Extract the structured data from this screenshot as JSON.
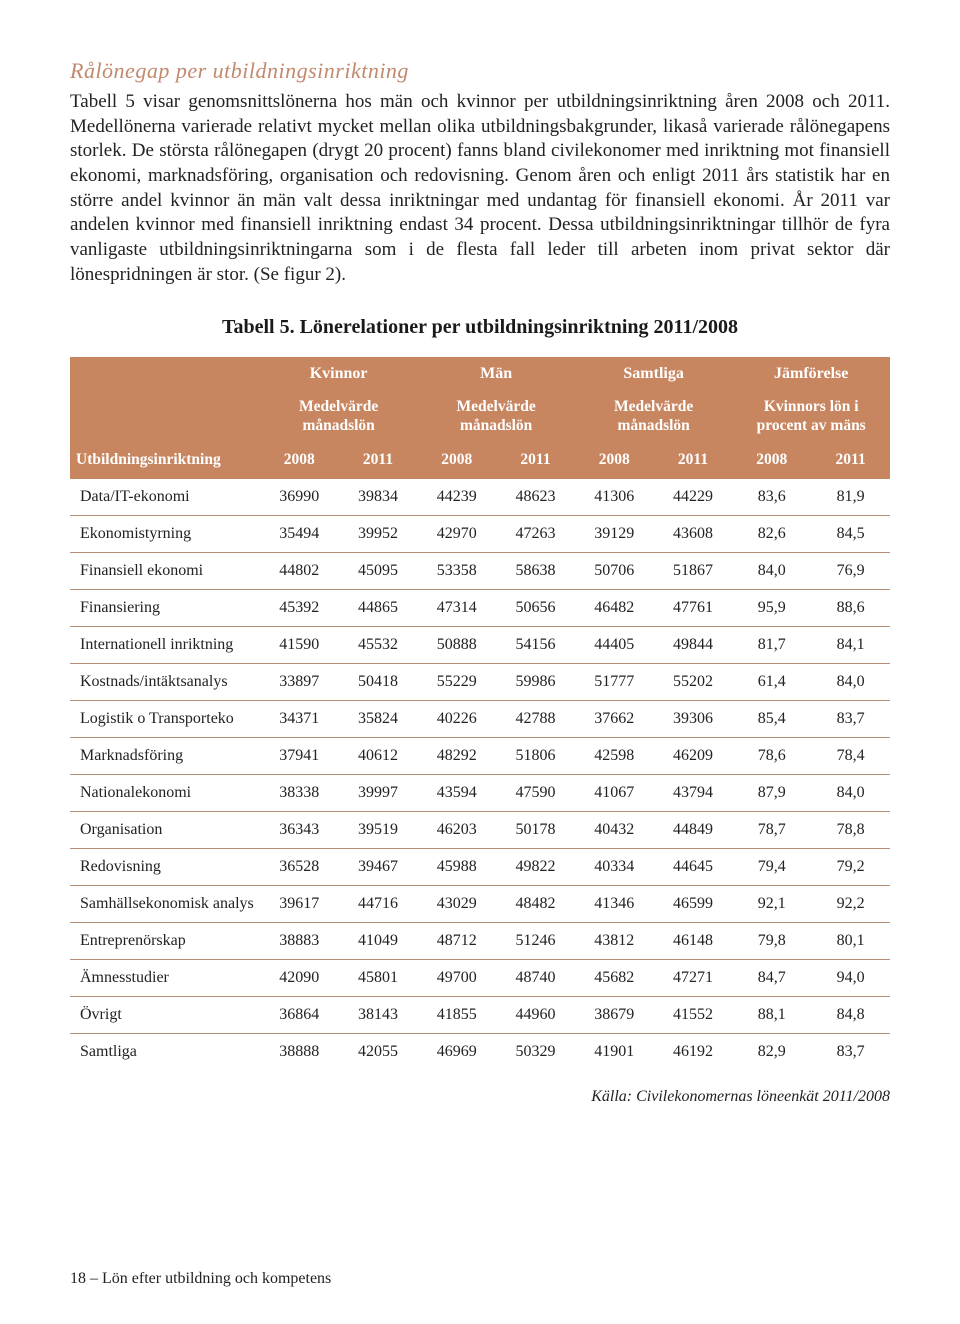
{
  "section_heading": "Rålönegap per utbildningsinriktning",
  "body_text": "Tabell 5 visar genomsnittslönerna hos män och kvinnor per utbildningsinriktning åren 2008 och 2011. Medellönerna varierade relativt mycket mellan olika utbildningsbakgrunder, likaså varierade rålönegapens storlek. De största rålönegapen (drygt 20 procent) fanns bland civilekonomer med inriktning mot finansiell ekonomi, marknadsföring, organisation och redovisning. Genom åren och enligt 2011 års statistik har en större andel kvinnor än män valt dessa inriktningar med undantag för finansiell ekonomi. År 2011 var andelen kvinnor med finansiell inriktning endast 34 procent. Dessa utbildningsinriktningar tillhör de fyra vanligaste utbildningsinriktningarna som i de flesta fall leder till arbeten inom privat sektor där lönespridningen är stor. (Se figur 2).",
  "table_title": "Tabell 5. Lönerelationer per utbildningsinriktning 2011/2008",
  "colors": {
    "header_bg": "#c88660",
    "header_text": "#ffffff",
    "row_border": "#b38f78",
    "heading": "#c1896d",
    "text": "#1a1a1a"
  },
  "header": {
    "row_label": "Utbildningsinriktning",
    "group_kvinnor": "Kvinnor",
    "group_man": "Män",
    "group_samtliga": "Samtliga",
    "group_jamforelse": "Jämförelse",
    "sub_medel": "Medelvärde månadslön",
    "sub_jamf": "Kvinnors lön i procent av mäns",
    "y2008": "2008",
    "y2011": "2011"
  },
  "rows": [
    {
      "label": "Data/IT-ekonomi",
      "k08": "36990",
      "k11": "39834",
      "m08": "44239",
      "m11": "48623",
      "s08": "41306",
      "s11": "44229",
      "j08": "83,6",
      "j11": "81,9"
    },
    {
      "label": "Ekonomistyrning",
      "k08": "35494",
      "k11": "39952",
      "m08": "42970",
      "m11": "47263",
      "s08": "39129",
      "s11": "43608",
      "j08": "82,6",
      "j11": "84,5"
    },
    {
      "label": "Finansiell ekonomi",
      "k08": "44802",
      "k11": "45095",
      "m08": "53358",
      "m11": "58638",
      "s08": "50706",
      "s11": "51867",
      "j08": "84,0",
      "j11": "76,9"
    },
    {
      "label": "Finansiering",
      "k08": "45392",
      "k11": "44865",
      "m08": "47314",
      "m11": "50656",
      "s08": "46482",
      "s11": "47761",
      "j08": "95,9",
      "j11": "88,6"
    },
    {
      "label": "Internationell inriktning",
      "k08": "41590",
      "k11": "45532",
      "m08": "50888",
      "m11": "54156",
      "s08": "44405",
      "s11": "49844",
      "j08": "81,7",
      "j11": "84,1"
    },
    {
      "label": "Kostnads/intäktsanalys",
      "k08": "33897",
      "k11": "50418",
      "m08": "55229",
      "m11": "59986",
      "s08": "51777",
      "s11": "55202",
      "j08": "61,4",
      "j11": "84,0"
    },
    {
      "label": "Logistik o Transporteko",
      "k08": "34371",
      "k11": "35824",
      "m08": "40226",
      "m11": "42788",
      "s08": "37662",
      "s11": "39306",
      "j08": "85,4",
      "j11": "83,7"
    },
    {
      "label": "Marknadsföring",
      "k08": "37941",
      "k11": "40612",
      "m08": "48292",
      "m11": "51806",
      "s08": "42598",
      "s11": "46209",
      "j08": "78,6",
      "j11": "78,4"
    },
    {
      "label": "Nationalekonomi",
      "k08": "38338",
      "k11": "39997",
      "m08": "43594",
      "m11": "47590",
      "s08": "41067",
      "s11": "43794",
      "j08": "87,9",
      "j11": "84,0"
    },
    {
      "label": "Organisation",
      "k08": "36343",
      "k11": "39519",
      "m08": "46203",
      "m11": "50178",
      "s08": "40432",
      "s11": "44849",
      "j08": "78,7",
      "j11": "78,8"
    },
    {
      "label": "Redovisning",
      "k08": "36528",
      "k11": "39467",
      "m08": "45988",
      "m11": "49822",
      "s08": "40334",
      "s11": "44645",
      "j08": "79,4",
      "j11": "79,2"
    },
    {
      "label": "Samhällsekonomisk analys",
      "k08": "39617",
      "k11": "44716",
      "m08": "43029",
      "m11": "48482",
      "s08": "41346",
      "s11": "46599",
      "j08": "92,1",
      "j11": "92,2"
    },
    {
      "label": "Entreprenörskap",
      "k08": "38883",
      "k11": "41049",
      "m08": "48712",
      "m11": "51246",
      "s08": "43812",
      "s11": "46148",
      "j08": "79,8",
      "j11": "80,1"
    },
    {
      "label": "Ämnesstudier",
      "k08": "42090",
      "k11": "45801",
      "m08": "49700",
      "m11": "48740",
      "s08": "45682",
      "s11": "47271",
      "j08": "84,7",
      "j11": "94,0"
    },
    {
      "label": "Övrigt",
      "k08": "36864",
      "k11": "38143",
      "m08": "41855",
      "m11": "44960",
      "s08": "38679",
      "s11": "41552",
      "j08": "88,1",
      "j11": "84,8"
    },
    {
      "label": "Samtliga",
      "k08": "38888",
      "k11": "42055",
      "m08": "46969",
      "m11": "50329",
      "s08": "41901",
      "s11": "46192",
      "j08": "82,9",
      "j11": "83,7"
    }
  ],
  "source_note": "Källa: Civilekonomernas löneenkät 2011/2008",
  "footer": "18 – Lön efter utbildning och kompetens"
}
